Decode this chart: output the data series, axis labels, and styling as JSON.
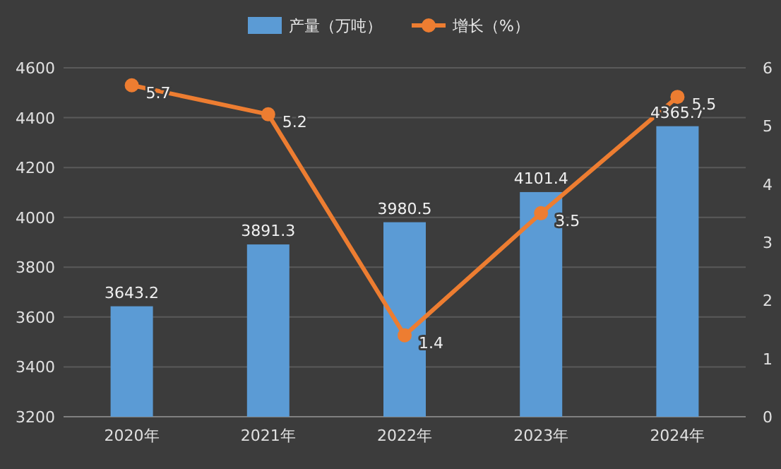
{
  "chart_data": {
    "type": "bar",
    "categories": [
      "2020年",
      "2021年",
      "2022年",
      "2023年",
      "2024年"
    ],
    "series": [
      {
        "name": "产量（万吨）",
        "color": "#5b9bd5",
        "values": [
          3643.2,
          3891.3,
          3980.5,
          4101.4,
          4365.7
        ]
      },
      {
        "name": "增长（%）",
        "type": "line",
        "axis": "y2",
        "color": "#ed7d31",
        "values": [
          5.7,
          5.2,
          1.4,
          3.5,
          5.5
        ]
      }
    ],
    "ylim": [
      3200,
      4600
    ],
    "yticks": [
      3200,
      3400,
      3600,
      3800,
      4000,
      4200,
      4400,
      4600
    ],
    "y2lim": [
      0,
      6
    ],
    "y2ticks": [
      0,
      1,
      2,
      3,
      4,
      5,
      6
    ],
    "grid": "y",
    "legend": "top",
    "marker": "circle",
    "data_labels": true
  }
}
